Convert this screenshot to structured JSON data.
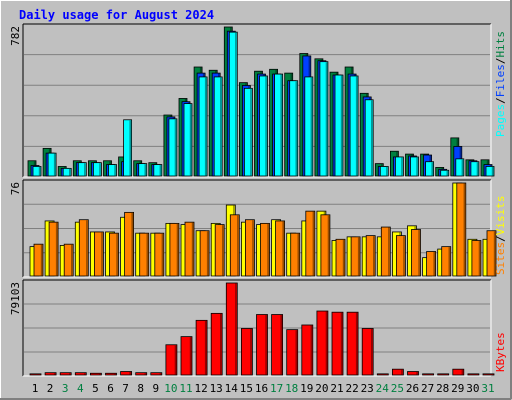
{
  "chart_data": [
    {
      "type": "bar",
      "title": "Daily usage for August 2024",
      "categories": [
        "1",
        "2",
        "3",
        "4",
        "5",
        "6",
        "7",
        "8",
        "9",
        "10",
        "11",
        "12",
        "13",
        "14",
        "15",
        "16",
        "17",
        "18",
        "19",
        "20",
        "21",
        "22",
        "23",
        "24",
        "25",
        "26",
        "27",
        "28",
        "29",
        "30",
        "31"
      ],
      "weekend_days": [
        "3",
        "4",
        "10",
        "11",
        "17",
        "18",
        "24",
        "25",
        "31"
      ],
      "ytick_label": "782",
      "ylim": [
        0,
        782
      ],
      "grid": true,
      "series": [
        {
          "name": "Hits",
          "color": "#008040",
          "values": [
            80,
            145,
            50,
            80,
            80,
            80,
            100,
            80,
            70,
            320,
            407,
            572,
            555,
            782,
            490,
            550,
            560,
            540,
            643,
            615,
            545,
            572,
            434,
            65,
            130,
            115,
            115,
            45,
            200,
            85,
            85
          ]
        },
        {
          "name": "Files",
          "color": "#0040ff",
          "values": [
            55,
            120,
            40,
            70,
            70,
            60,
            75,
            65,
            60,
            310,
            390,
            540,
            540,
            760,
            475,
            535,
            535,
            500,
            630,
            605,
            530,
            535,
            415,
            50,
            100,
            105,
            110,
            35,
            155,
            80,
            60
          ]
        },
        {
          "name": "Pages",
          "color": "#00ffff",
          "values": [
            50,
            120,
            40,
            70,
            70,
            60,
            295,
            65,
            60,
            300,
            380,
            520,
            520,
            755,
            460,
            525,
            535,
            500,
            520,
            600,
            530,
            525,
            400,
            50,
            100,
            100,
            75,
            30,
            90,
            75,
            50
          ]
        }
      ]
    },
    {
      "type": "bar",
      "ytick_label": "76",
      "ylim": [
        0,
        76
      ],
      "grid": true,
      "series": [
        {
          "name": "Visits",
          "color": "#ffff00",
          "values": [
            24,
            45,
            25,
            44,
            36,
            36,
            48,
            35,
            35,
            43,
            42,
            37,
            43,
            58,
            44,
            42,
            46,
            35,
            45,
            53,
            29,
            32,
            32,
            32,
            36,
            41,
            15,
            22,
            76,
            30,
            30
          ]
        },
        {
          "name": "Sites",
          "color": "#ff8000",
          "values": [
            26,
            44,
            26,
            46,
            36,
            35,
            52,
            35,
            35,
            43,
            44,
            37,
            42,
            50,
            46,
            43,
            45,
            35,
            53,
            50,
            30,
            32,
            33,
            40,
            33,
            38,
            20,
            24,
            76,
            29,
            37
          ]
        }
      ]
    },
    {
      "type": "bar",
      "ytick_label": "79103",
      "ylim": [
        0,
        79103
      ],
      "grid": true,
      "series": [
        {
          "name": "KBytes",
          "color": "#ff0000",
          "values": [
            1000,
            2000,
            2000,
            2000,
            1500,
            1500,
            3000,
            2000,
            2000,
            26000,
            33000,
            47000,
            53000,
            79103,
            40000,
            52000,
            52000,
            39000,
            43000,
            55000,
            54000,
            54000,
            40000,
            1000,
            5000,
            3000,
            1000,
            1000,
            5000,
            1000,
            1000
          ]
        }
      ]
    }
  ],
  "legend": {
    "top": [
      "Pages",
      "/",
      "Files",
      "/",
      "Hits"
    ],
    "middle": [
      "Sites",
      "/",
      "Visits"
    ],
    "bottom": [
      "KBytes"
    ]
  },
  "colors": {
    "title": "#0000ff",
    "background": "#c0c0c0",
    "border": "#000000",
    "weekend_label": "#008040",
    "weekday_label": "#000000",
    "divider": "#ffffff"
  }
}
